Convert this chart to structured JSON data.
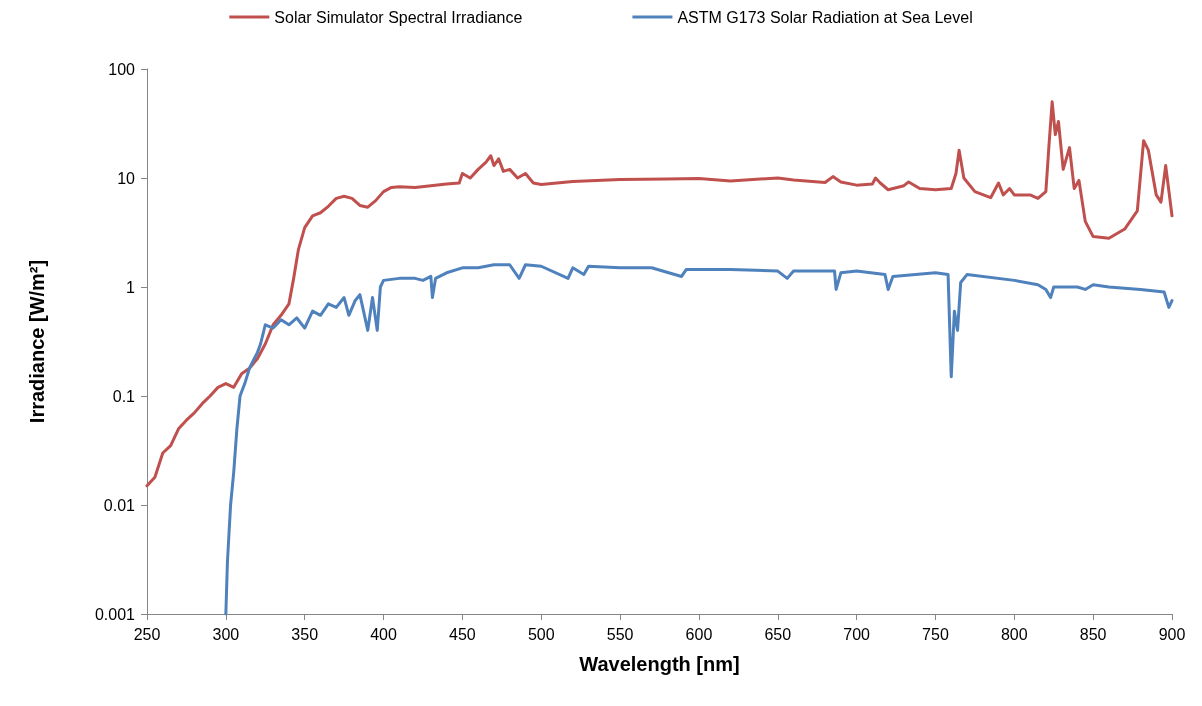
{
  "chart_data": {
    "type": "line",
    "xlabel": "Wavelength [nm]",
    "ylabel": "Irradiance [W/m²]",
    "log": "y",
    "grid": false,
    "legend": "top",
    "marker": "none",
    "line_style": "solid",
    "xlim": [
      250,
      900
    ],
    "xticks": [
      250,
      300,
      350,
      400,
      450,
      500,
      550,
      600,
      650,
      700,
      750,
      800,
      850,
      900
    ],
    "ylim": [
      0.001,
      100
    ],
    "yticks": [
      0.001,
      0.01,
      0.1,
      1,
      10,
      100
    ],
    "series": [
      {
        "name": "Solar Simulator Spectral Irradiance",
        "color": "#c0504d",
        "x": [
          250,
          255,
          260,
          265,
          270,
          275,
          280,
          285,
          290,
          295,
          300,
          305,
          310,
          315,
          320,
          325,
          330,
          335,
          340,
          343,
          346,
          350,
          355,
          360,
          365,
          370,
          375,
          380,
          385,
          390,
          395,
          400,
          405,
          410,
          420,
          430,
          440,
          448,
          450,
          455,
          460,
          465,
          468,
          470,
          473,
          476,
          480,
          485,
          490,
          495,
          500,
          510,
          520,
          550,
          580,
          600,
          620,
          650,
          660,
          680,
          685,
          690,
          700,
          710,
          712,
          715,
          720,
          730,
          733,
          740,
          750,
          760,
          763,
          765,
          768,
          775,
          785,
          790,
          793,
          797,
          800,
          810,
          815,
          820,
          822,
          824,
          826,
          828,
          831,
          835,
          838,
          841,
          845,
          850,
          860,
          870,
          878,
          882,
          885,
          890,
          893,
          896,
          900
        ],
        "values": [
          0.015,
          0.018,
          0.03,
          0.035,
          0.05,
          0.06,
          0.07,
          0.085,
          0.1,
          0.12,
          0.13,
          0.12,
          0.16,
          0.18,
          0.22,
          0.3,
          0.45,
          0.55,
          0.7,
          1.2,
          2.2,
          3.5,
          4.5,
          4.8,
          5.5,
          6.5,
          6.8,
          6.5,
          5.6,
          5.4,
          6.2,
          7.5,
          8.2,
          8.3,
          8.2,
          8.5,
          8.8,
          9,
          11,
          10,
          12,
          14,
          16,
          13,
          15,
          11.5,
          12,
          10,
          11,
          9,
          8.7,
          9,
          9.3,
          9.7,
          9.8,
          9.9,
          9.4,
          10,
          9.6,
          9.1,
          10.3,
          9.2,
          8.6,
          8.8,
          10,
          9,
          7.8,
          8.5,
          9.2,
          8,
          7.8,
          8,
          11,
          18,
          10,
          7.5,
          6.6,
          9,
          7,
          8,
          7,
          7,
          6.5,
          7.5,
          20,
          50,
          25,
          33,
          12,
          19,
          8,
          9.5,
          4,
          2.9,
          2.8,
          3.4,
          5,
          22,
          18,
          7,
          6,
          13,
          4.5
        ]
      },
      {
        "name": "ASTM G173 Solar Radiation at Sea Level",
        "color": "#4f81bd",
        "x": [
          300,
          301,
          303,
          305,
          307,
          309,
          312,
          315,
          318,
          320,
          322,
          325,
          330,
          335,
          340,
          345,
          350,
          355,
          360,
          365,
          370,
          375,
          378,
          382,
          385,
          390,
          393,
          396,
          398,
          400,
          410,
          420,
          425,
          430,
          431,
          433,
          440,
          450,
          460,
          470,
          480,
          486,
          490,
          500,
          517,
          520,
          527,
          530,
          550,
          570,
          589,
          592,
          620,
          650,
          656,
          660,
          686,
          687,
          690,
          700,
          718,
          720,
          723,
          750,
          758,
          760,
          762,
          764,
          766,
          770,
          800,
          815,
          820,
          823,
          825,
          840,
          845,
          850,
          860,
          880,
          895,
          898,
          900
        ],
        "values": [
          0.001,
          0.003,
          0.01,
          0.02,
          0.05,
          0.1,
          0.13,
          0.18,
          0.22,
          0.25,
          0.3,
          0.45,
          0.42,
          0.5,
          0.45,
          0.52,
          0.42,
          0.6,
          0.55,
          0.7,
          0.65,
          0.8,
          0.55,
          0.75,
          0.85,
          0.4,
          0.8,
          0.4,
          1,
          1.15,
          1.2,
          1.2,
          1.15,
          1.25,
          0.8,
          1.2,
          1.35,
          1.5,
          1.5,
          1.6,
          1.6,
          1.2,
          1.6,
          1.55,
          1.2,
          1.5,
          1.3,
          1.55,
          1.5,
          1.5,
          1.25,
          1.45,
          1.45,
          1.4,
          1.2,
          1.4,
          1.4,
          0.95,
          1.35,
          1.4,
          1.3,
          0.95,
          1.25,
          1.35,
          1.3,
          0.15,
          0.6,
          0.4,
          1.1,
          1.3,
          1.15,
          1.05,
          0.95,
          0.8,
          1,
          1,
          0.95,
          1.05,
          1,
          0.95,
          0.9,
          0.65,
          0.75
        ]
      }
    ]
  }
}
